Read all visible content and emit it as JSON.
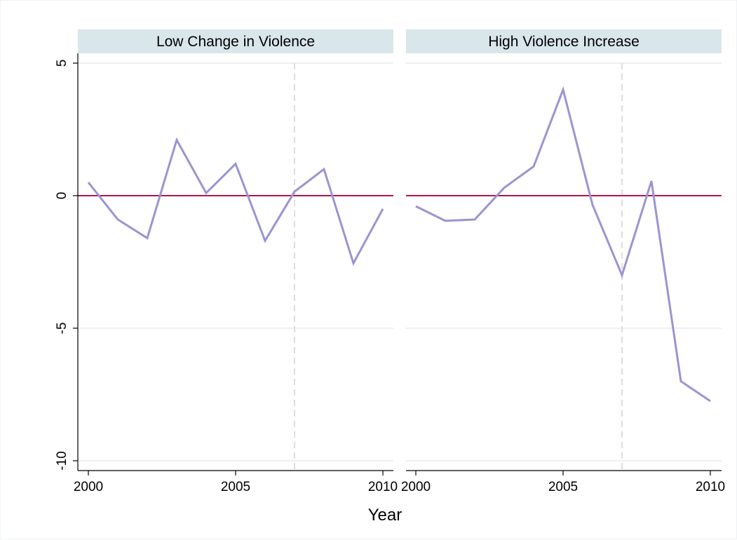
{
  "chart_data": {
    "type": "line",
    "xlabel": "Year",
    "ylabel": "",
    "ylim": [
      -10,
      5
    ],
    "xlim": [
      2000,
      2010
    ],
    "x_ticks": [
      2000,
      2005,
      2010
    ],
    "x_tick_labels": [
      "2000",
      "2005",
      "2010"
    ],
    "y_ticks": [
      5,
      0,
      -5,
      -10
    ],
    "y_tick_labels": [
      "5",
      "0",
      "-5",
      "-10"
    ],
    "reference_line_y": 0,
    "reference_line_x": 2007,
    "grid": true,
    "colors": {
      "series": "#9a94d2",
      "reference": "#b0154a",
      "vline": "#dddddd",
      "grid": "#e8eaec",
      "strip": "#d9e6ea"
    },
    "panels": [
      {
        "title": "Low Change in Violence",
        "x": [
          2000,
          2001,
          2002,
          2003,
          2004,
          2005,
          2006,
          2007,
          2008,
          2009,
          2010
        ],
        "values": [
          0.5,
          -0.9,
          -1.6,
          2.1,
          0.1,
          1.2,
          -1.7,
          0.15,
          1.0,
          -2.55,
          -0.5
        ]
      },
      {
        "title": "High Violence Increase",
        "x": [
          2000,
          2001,
          2002,
          2003,
          2004,
          2005,
          2006,
          2007,
          2008,
          2009,
          2010
        ],
        "values": [
          -0.4,
          -0.95,
          -0.9,
          0.3,
          1.1,
          4.0,
          -0.35,
          -3.0,
          0.55,
          -7.0,
          -7.75
        ]
      }
    ]
  }
}
